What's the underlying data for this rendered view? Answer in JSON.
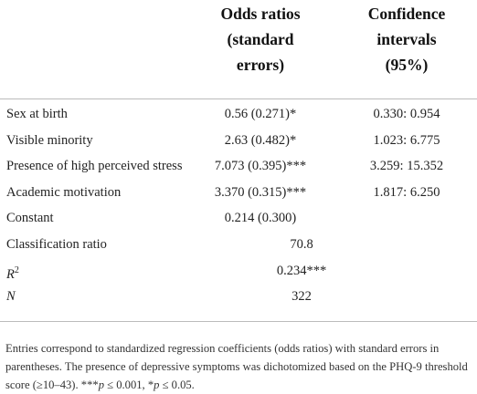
{
  "table": {
    "header": [
      [
        "Odds ratios",
        "(standard",
        "errors)"
      ],
      [
        "Confidence",
        "intervals",
        "(95%)"
      ]
    ],
    "rows": [
      {
        "label": "Sex at birth",
        "odds": "0.56 (0.271)*",
        "ci": "0.330: 0.954"
      },
      {
        "label": "Visible minority",
        "odds": "2.63 (0.482)*",
        "ci": "1.023: 6.775"
      },
      {
        "label": "Presence of high perceived stress",
        "odds": "7.073 (0.395)***",
        "ci": "3.259: 15.352"
      },
      {
        "label": "Academic motivation",
        "odds": "3.370 (0.315)***",
        "ci": "1.817: 6.250"
      },
      {
        "label": "Constant",
        "odds": "0.214 (0.300)"
      }
    ],
    "summary": [
      {
        "label": "Classification ratio",
        "value": "70.8"
      },
      {
        "label": "R",
        "label_sup": "2",
        "value": "0.234***"
      },
      {
        "label": "N",
        "value": "322"
      }
    ],
    "footnote": [
      {
        "text": "Entries correspond to standardized regression coefficients (odds ratios) with standard errors in parentheses. The presence of depressive symptoms was dichotomized based on the PHQ-9 threshold score (≥10–43). ***"
      },
      {
        "text": "p",
        "italic": true
      },
      {
        "text": " ≤ 0.001, *"
      },
      {
        "text": "p",
        "italic": true
      },
      {
        "text": " ≤ 0.05."
      }
    ]
  }
}
